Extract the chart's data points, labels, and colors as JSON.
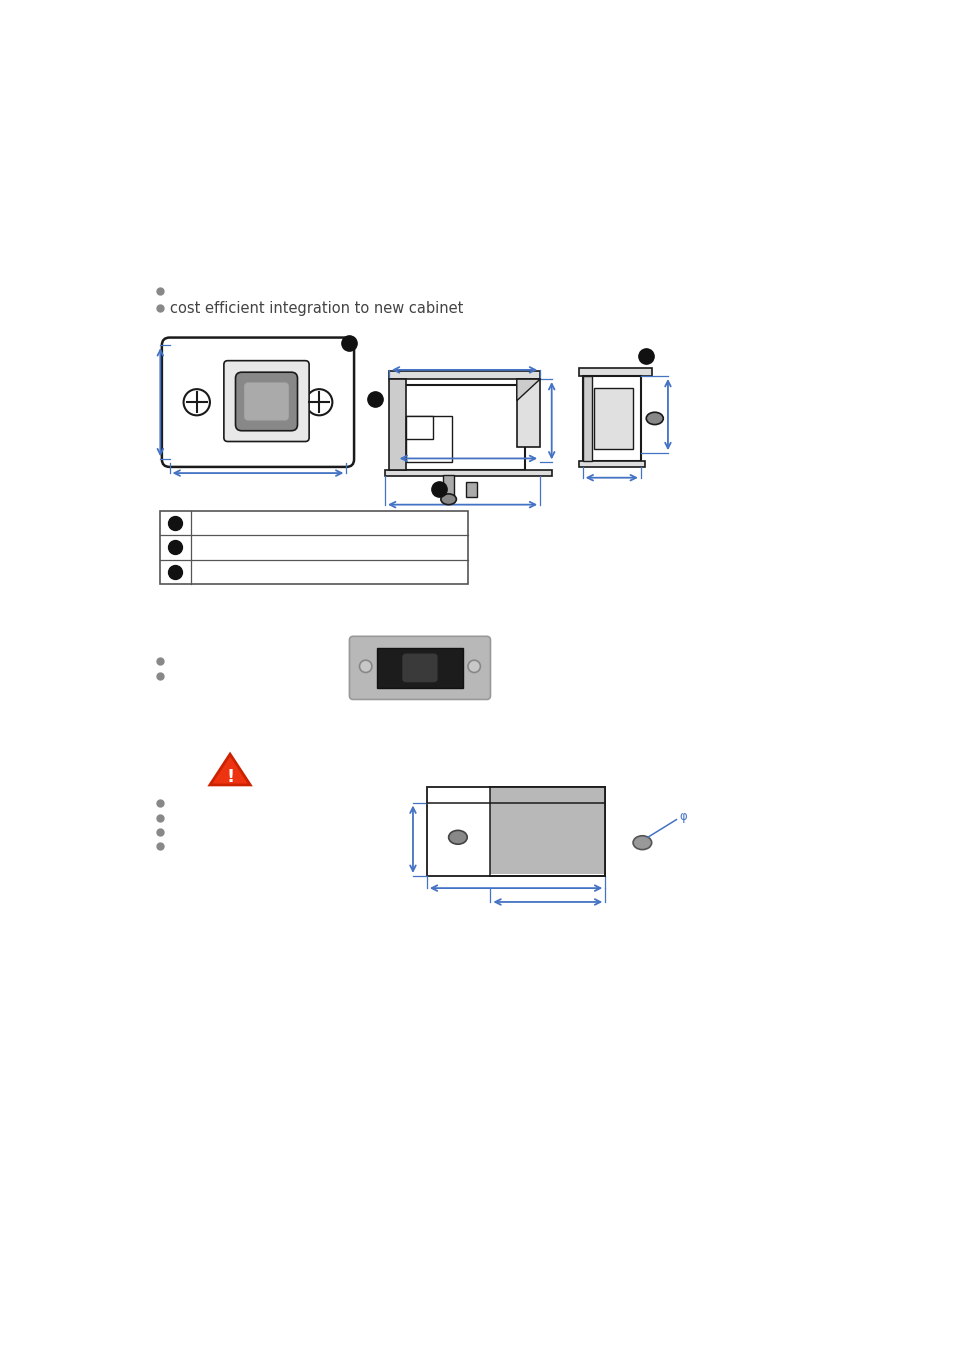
{
  "bg_color": "#ffffff",
  "bullet_color": "#888888",
  "bullet2_text": "cost efficient integration to new cabinet",
  "dim_color": "#4472c4",
  "gray_rect_color": "#b8b8b8",
  "dark_line": "#1a1a1a",
  "med_line": "#555555"
}
